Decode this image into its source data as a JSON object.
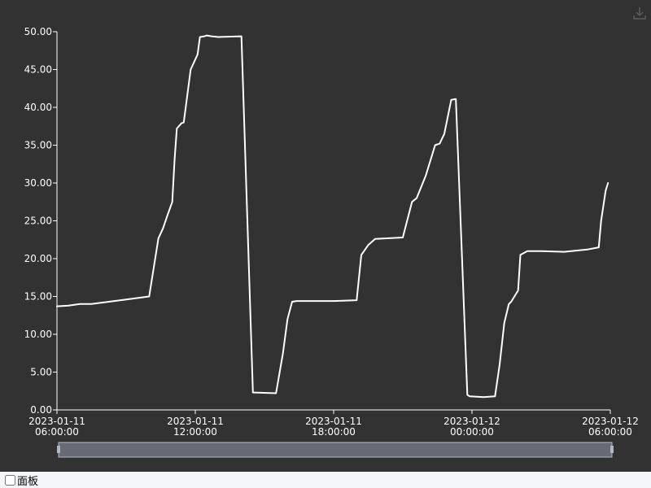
{
  "chart_data": {
    "type": "line",
    "ylim": [
      0,
      50
    ],
    "yticks": [
      "0.00",
      "5.00",
      "10.00",
      "15.00",
      "20.00",
      "25.00",
      "30.00",
      "35.00",
      "40.00",
      "45.00",
      "50.00"
    ],
    "xticks": [
      {
        "line1": "2023-01-11",
        "line2": "06:00:00"
      },
      {
        "line1": "2023-01-11",
        "line2": "12:00:00"
      },
      {
        "line1": "2023-01-11",
        "line2": "18:00:00"
      },
      {
        "line1": "2023-01-12",
        "line2": "00:00:00"
      },
      {
        "line1": "2023-01-12",
        "line2": "06:00:00"
      }
    ],
    "xlim": [
      "2023-01-11 06:00",
      "2023-01-12 06:00"
    ],
    "series": [
      {
        "x": [
          "2023-01-11 06:00",
          "2023-01-11 06:30",
          "2023-01-11 07:00",
          "2023-01-11 07:30",
          "2023-01-11 08:00",
          "2023-01-11 09:00",
          "2023-01-11 10:00",
          "2023-01-11 10:24",
          "2023-01-11 10:36",
          "2023-01-11 10:48",
          "2023-01-11 11:00",
          "2023-01-11 11:06",
          "2023-01-11 11:12",
          "2023-01-11 11:24",
          "2023-01-11 11:30",
          "2023-01-11 11:48",
          "2023-01-11 12:06",
          "2023-01-11 12:12",
          "2023-01-11 12:24",
          "2023-01-11 12:30",
          "2023-01-11 12:42",
          "2023-01-11 13:00",
          "2023-01-11 14:00",
          "2023-01-11 14:30",
          "2023-01-11 14:36",
          "2023-01-11 15:30",
          "2023-01-11 15:48",
          "2023-01-11 16:00",
          "2023-01-11 16:12",
          "2023-01-11 16:24",
          "2023-01-11 18:00",
          "2023-01-11 19:00",
          "2023-01-11 19:12",
          "2023-01-11 19:30",
          "2023-01-11 19:48",
          "2023-01-11 21:00",
          "2023-01-11 21:24",
          "2023-01-11 21:36",
          "2023-01-11 22:00",
          "2023-01-11 22:24",
          "2023-01-11 22:36",
          "2023-01-11 22:48",
          "2023-01-11 23:06",
          "2023-01-11 23:18",
          "2023-01-11 23:48",
          "2023-01-11 23:54",
          "2023-01-12 00:30",
          "2023-01-12 01:00",
          "2023-01-12 01:12",
          "2023-01-12 01:24",
          "2023-01-12 01:36",
          "2023-01-12 01:42",
          "2023-01-12 02:00",
          "2023-01-12 02:06",
          "2023-01-12 02:24",
          "2023-01-12 02:30",
          "2023-01-12 03:00",
          "2023-01-12 04:00",
          "2023-01-12 05:00",
          "2023-01-12 05:30",
          "2023-01-12 05:36",
          "2023-01-12 05:48",
          "2023-01-12 05:54"
        ],
        "y": [
          13.7,
          13.8,
          14.0,
          14.0,
          14.2,
          14.6,
          15.0,
          22.7,
          24.0,
          25.8,
          27.5,
          33.0,
          37.2,
          37.9,
          38.0,
          45.0,
          47.0,
          49.3,
          49.4,
          49.5,
          49.4,
          49.3,
          49.4,
          2.3,
          2.3,
          2.2,
          7.5,
          12.0,
          14.3,
          14.4,
          14.4,
          14.5,
          20.5,
          21.8,
          22.6,
          22.8,
          27.5,
          28.0,
          31.0,
          35.0,
          35.2,
          36.5,
          41.0,
          41.1,
          2.0,
          1.8,
          1.7,
          1.8,
          6.0,
          11.5,
          14.0,
          14.3,
          15.8,
          20.5,
          21.0,
          21.0,
          21.0,
          20.9,
          21.2,
          21.5,
          25.0,
          29.0,
          30.0
        ]
      }
    ]
  },
  "legend_toggle": {
    "label": "面板",
    "checked": false
  }
}
